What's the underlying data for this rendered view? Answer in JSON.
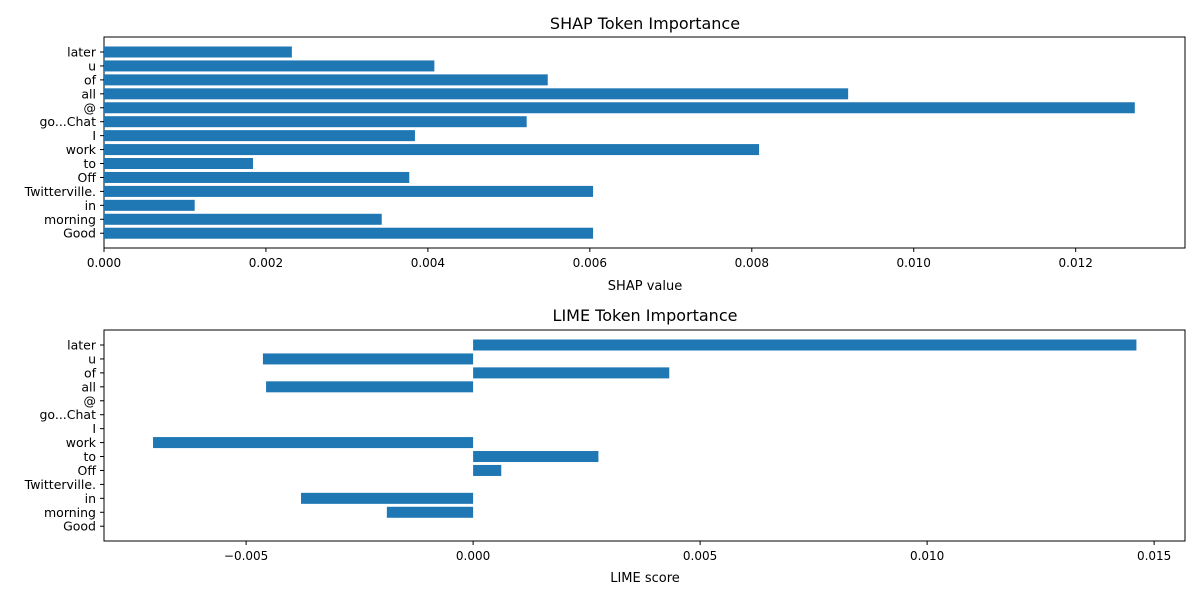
{
  "chart_data": [
    {
      "type": "bar",
      "orientation": "horizontal",
      "title": "SHAP Token Importance",
      "xlabel": "SHAP value",
      "ylabel": "",
      "categories": [
        "later",
        "u",
        "of",
        "all",
        "@",
        "go...Chat",
        "I",
        "work",
        "to",
        "Off",
        "Twitterville.",
        "in",
        "morning",
        "Good"
      ],
      "values": [
        0.00232,
        0.00408,
        0.00548,
        0.00919,
        0.01273,
        0.00522,
        0.00384,
        0.00809,
        0.00184,
        0.00377,
        0.00604,
        0.00112,
        0.00343,
        0.00604
      ],
      "xlim": [
        0,
        0.01335
      ],
      "xticks": [
        0,
        0.002,
        0.004,
        0.006,
        0.008,
        0.01,
        0.012
      ],
      "xtick_labels": [
        "0.000",
        "0.002",
        "0.004",
        "0.006",
        "0.008",
        "0.010",
        "0.012"
      ],
      "grid": false,
      "bar_color": "#1f77b4"
    },
    {
      "type": "bar",
      "orientation": "horizontal",
      "title": "LIME Token Importance",
      "xlabel": "LIME score",
      "ylabel": "",
      "categories": [
        "later",
        "u",
        "of",
        "all",
        "@",
        "go...Chat",
        "I",
        "work",
        "to",
        "Off",
        "Twitterville.",
        "in",
        "morning",
        "Good"
      ],
      "values": [
        0.01461,
        -0.00463,
        0.00432,
        -0.00456,
        0,
        0,
        0,
        -0.00705,
        0.00276,
        0.00062,
        0,
        -0.00379,
        -0.0019,
        0
      ],
      "xlim": [
        -0.00813,
        0.01568
      ],
      "xticks": [
        -0.005,
        0,
        0.005,
        0.01,
        0.015
      ],
      "xtick_labels": [
        "−0.005",
        "0.000",
        "0.005",
        "0.010",
        "0.015"
      ],
      "grid": false,
      "bar_color": "#1f77b4"
    }
  ]
}
